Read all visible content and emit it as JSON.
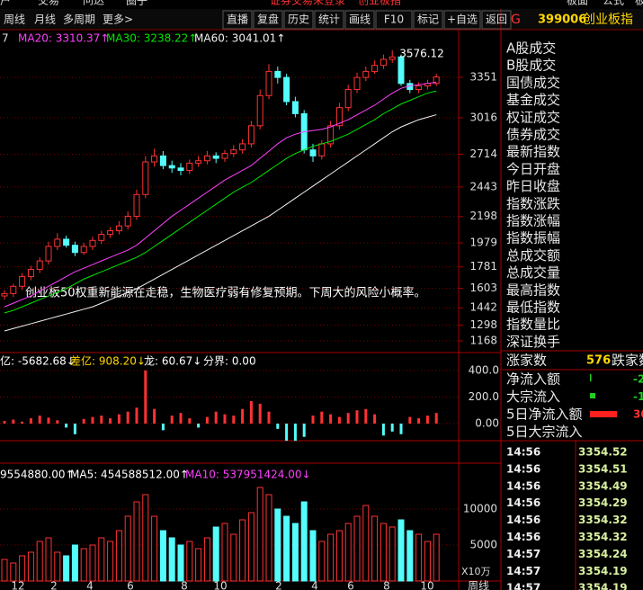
{
  "menu": [
    "户",
    "交易",
    "问达",
    "圈子",
    "证券交易未登录",
    "创业板指",
    "板面",
    "公式",
    "板"
  ],
  "toolbar": {
    "left": [
      "周线",
      "月线",
      "多周期",
      "更多>"
    ],
    "right": [
      "直播",
      "复盘",
      "历史",
      "统计",
      "画线",
      "F10",
      "标记",
      "+自选",
      "返回"
    ]
  },
  "header": {
    "marker": "G",
    "code": "399006",
    "name": "创业板指"
  },
  "chart_data": [
    {
      "type": "candlestick",
      "ma_fragment": "7",
      "open": [
        1540,
        1560,
        1620,
        1700,
        1760,
        1830,
        1950,
        2010,
        1960,
        1900,
        1950,
        2000,
        2050,
        2080,
        2120,
        2200,
        2380,
        2650,
        2700,
        2620,
        2600,
        2580,
        2640,
        2660,
        2700,
        2680,
        2720,
        2750,
        2800,
        2950,
        3200,
        3400,
        3350,
        3150,
        3050,
        2750,
        2700,
        2800,
        2950,
        3100,
        3250,
        3350,
        3400,
        3450,
        3500,
        3520,
        3300,
        3250,
        3280,
        3300
      ],
      "high": [
        1590,
        1640,
        1730,
        1790,
        1860,
        1990,
        2060,
        2040,
        1990,
        1980,
        2030,
        2080,
        2110,
        2160,
        2240,
        2420,
        2700,
        2760,
        2740,
        2660,
        2640,
        2670,
        2700,
        2740,
        2730,
        2750,
        2790,
        2840,
        2990,
        3250,
        3460,
        3440,
        3380,
        3190,
        3080,
        2800,
        2830,
        2990,
        3140,
        3290,
        3390,
        3440,
        3490,
        3540,
        3576.12,
        3540,
        3330,
        3310,
        3330,
        3380
      ],
      "low": [
        1510,
        1530,
        1590,
        1670,
        1730,
        1800,
        1920,
        1940,
        1870,
        1880,
        1920,
        1970,
        2020,
        2050,
        2090,
        2170,
        2350,
        2610,
        2590,
        2560,
        2540,
        2550,
        2610,
        2630,
        2640,
        2650,
        2690,
        2720,
        2770,
        2920,
        3170,
        3300,
        3120,
        3020,
        2720,
        2650,
        2670,
        2770,
        2920,
        3070,
        3220,
        3320,
        3380,
        3420,
        3470,
        3280,
        3220,
        3220,
        3250,
        3280
      ],
      "close": [
        1560,
        1620,
        1700,
        1760,
        1830,
        1950,
        2010,
        1960,
        1900,
        1950,
        2000,
        2050,
        2080,
        2120,
        2200,
        2380,
        2650,
        2700,
        2620,
        2600,
        2580,
        2640,
        2660,
        2700,
        2680,
        2720,
        2750,
        2800,
        2950,
        3200,
        3400,
        3350,
        3150,
        3050,
        2750,
        2700,
        2800,
        2950,
        3100,
        3250,
        3350,
        3400,
        3450,
        3500,
        3520,
        3300,
        3250,
        3280,
        3300,
        3354
      ],
      "series": [
        {
          "name": "MA20: 3310.37↑",
          "color": "#ff40ff",
          "values": [
            1450,
            1480,
            1510,
            1540,
            1580,
            1620,
            1660,
            1700,
            1740,
            1770,
            1800,
            1830,
            1860,
            1890,
            1920,
            1960,
            2020,
            2080,
            2140,
            2200,
            2250,
            2300,
            2350,
            2400,
            2450,
            2500,
            2540,
            2580,
            2620,
            2680,
            2740,
            2800,
            2850,
            2880,
            2900,
            2910,
            2920,
            2940,
            2970,
            3000,
            3040,
            3080,
            3120,
            3170,
            3220,
            3260,
            3280,
            3290,
            3300,
            3310.37
          ]
        },
        {
          "name": "MA30: 3238.22↑",
          "color": "#00e600",
          "values": [
            1400,
            1420,
            1450,
            1480,
            1510,
            1540,
            1570,
            1600,
            1640,
            1680,
            1710,
            1740,
            1770,
            1800,
            1830,
            1860,
            1900,
            1950,
            2000,
            2050,
            2100,
            2150,
            2200,
            2250,
            2300,
            2350,
            2400,
            2440,
            2480,
            2530,
            2580,
            2630,
            2680,
            2720,
            2750,
            2780,
            2800,
            2820,
            2850,
            2880,
            2920,
            2960,
            3000,
            3050,
            3090,
            3130,
            3160,
            3190,
            3220,
            3238.22
          ]
        },
        {
          "name": "MA60: 3041.01↑",
          "color": "#f0f0f0",
          "values": [
            1250,
            1270,
            1290,
            1310,
            1330,
            1350,
            1370,
            1390,
            1410,
            1430,
            1450,
            1480,
            1510,
            1540,
            1570,
            1600,
            1640,
            1680,
            1720,
            1760,
            1800,
            1840,
            1880,
            1920,
            1960,
            2000,
            2040,
            2080,
            2120,
            2160,
            2200,
            2250,
            2300,
            2350,
            2400,
            2450,
            2500,
            2550,
            2600,
            2650,
            2700,
            2750,
            2800,
            2850,
            2900,
            2940,
            2970,
            3000,
            3020,
            3041.01
          ]
        }
      ],
      "ylim": [
        1071,
        3619
      ],
      "yticks": [
        3351,
        3016,
        2714,
        2443,
        2198,
        1979,
        1781,
        1603,
        1442,
        1298,
        1168
      ],
      "annotation": "创业板50权重新能源在走稳，生物医疗弱有修复预期。下周大的风险小概率。"
    },
    {
      "type": "bar",
      "legend": [
        "亿: -5682.68↓",
        "差亿: 908.20↓",
        "龙: 60.67↓",
        "分界: 0.00"
      ],
      "values": [
        20,
        30,
        15,
        40,
        60,
        45,
        25,
        -30,
        -80,
        35,
        50,
        60,
        40,
        70,
        90,
        120,
        400,
        110,
        -50,
        60,
        80,
        40,
        -30,
        50,
        90,
        70,
        60,
        110,
        170,
        150,
        90,
        -40,
        -129,
        -129,
        -100,
        60,
        90,
        70,
        50,
        80,
        100,
        110,
        70,
        -90,
        -60,
        -80,
        50,
        40,
        60,
        80
      ],
      "ylim": [
        -129,
        515
      ],
      "yticks": [
        {
          "value": 400,
          "label": "400.0"
        },
        {
          "value": 200,
          "label": "200.0"
        },
        {
          "value": 0,
          "label": "0.00"
        }
      ]
    },
    {
      "type": "volume",
      "legend": [
        "9554880.00↑",
        "MA5: 454588512.00↑",
        "MA10: 537951424.00↓"
      ],
      "values": [
        3000,
        2500,
        3500,
        4000,
        5500,
        6000,
        4000,
        3500,
        5000,
        4500,
        5000,
        6000,
        5500,
        7000,
        9000,
        11000,
        12000,
        9000,
        7000,
        6000,
        5000,
        5500,
        4500,
        6000,
        7500,
        8000,
        6500,
        8500,
        9500,
        13000,
        12000,
        10000,
        9000,
        8000,
        11000,
        7000,
        5500,
        6500,
        7000,
        8000,
        9000,
        10500,
        9000,
        8000,
        7500,
        8500,
        7000,
        6500,
        5500,
        6500
      ],
      "ylim": [
        0,
        15750
      ],
      "yticks": [
        10000,
        5000
      ],
      "unit": "X10万",
      "x_labels": [
        "12",
        "2",
        "4",
        "6",
        "8",
        "10",
        "2",
        "4",
        "6",
        "8",
        "10"
      ],
      "period": "周线"
    }
  ],
  "panel": {
    "fields": [
      "A股成交",
      "B股成交",
      "国债成交",
      "基金成交",
      "权证成交",
      "债券成交",
      "最新指数",
      "今日开盘",
      "昨日收盘",
      "指数涨跌",
      "指数涨幅",
      "指数振幅",
      "总成交额",
      "总成交量",
      "最高指数",
      "最低指数",
      "指数量比",
      "深证换手"
    ],
    "breadth": [
      "涨家数",
      "576",
      "跌家数"
    ],
    "flows": [
      [
        "净流入额",
        "-2"
      ],
      [
        "大宗流入",
        "-1"
      ],
      [
        "5日净流入额",
        "30"
      ],
      [
        "5日大宗流入",
        ""
      ]
    ],
    "ticks": [
      [
        "14:56",
        "3354.52"
      ],
      [
        "14:56",
        "3354.51"
      ],
      [
        "14:56",
        "3354.49"
      ],
      [
        "14:56",
        "3354.29"
      ],
      [
        "14:56",
        "3354.32"
      ],
      [
        "14:56",
        "3354.32"
      ],
      [
        "14:57",
        "3354.24"
      ],
      [
        "14:57",
        "3354.19"
      ],
      [
        "14:57",
        "3354.19"
      ]
    ]
  }
}
